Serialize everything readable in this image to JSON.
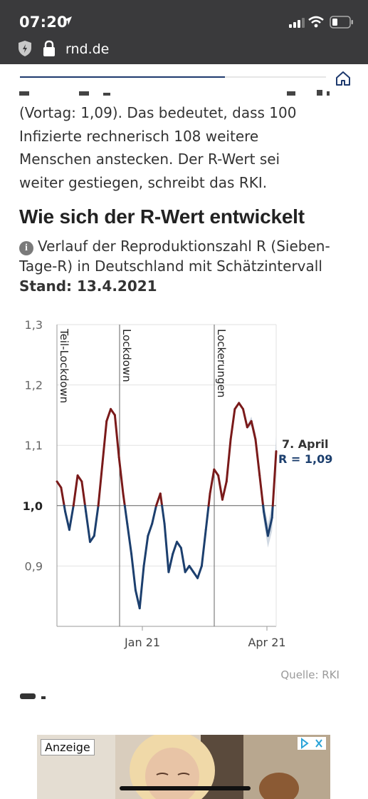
{
  "status_bar": {
    "time": "07:20"
  },
  "browser": {
    "domain": "rnd.de"
  },
  "reading_progress": 0.67,
  "article": {
    "paragraph_lines": [
      "(Vortag: 1,09). Das bedeutet, dass 100",
      "Infizierte rechnerisch 108 weitere",
      "Menschen anstecken. Der R-Wert sei",
      "weiter gestiegen, schreibt das RKI."
    ]
  },
  "section": {
    "heading": "Wie sich der R-Wert entwickelt",
    "description": "Verlauf der Reproduktionszahl R (Sieben-Tage-R) in Deutschland mit Schätzintervall",
    "stand": "Stand: 13.4.2021"
  },
  "chart_data": {
    "type": "line",
    "y_ticks": [
      "1,3",
      "1,2",
      "1,1",
      "1,0",
      "0,9"
    ],
    "ylim": [
      0.8,
      1.3
    ],
    "x_ticks": [
      "Jan 21",
      "Apr 21"
    ],
    "events": [
      "Teil-Lockdown",
      "Lockdown",
      "Lockerungen"
    ],
    "reference_line": 1.0,
    "colors": {
      "above": "#7a1a1a",
      "below": "#1c3f6e",
      "band": "#bcc8d6"
    },
    "series": [
      {
        "values": [
          1.04,
          1.03,
          0.99,
          0.96,
          1.0,
          1.05,
          1.04,
          0.99,
          0.94,
          0.95,
          1.0,
          1.07,
          1.14,
          1.16,
          1.15,
          1.08,
          1.02,
          0.97,
          0.92,
          0.86,
          0.83,
          0.9,
          0.95,
          0.97,
          1.0,
          1.02,
          0.97,
          0.89,
          0.92,
          0.94,
          0.93,
          0.89,
          0.9,
          0.89,
          0.88,
          0.9,
          0.96,
          1.02,
          1.06,
          1.05,
          1.01,
          1.04,
          1.11,
          1.16,
          1.17,
          1.16,
          1.13,
          1.14,
          1.11,
          1.05,
          0.99,
          0.95,
          0.98,
          1.09
        ]
      }
    ],
    "annotation": {
      "date": "7. April",
      "value": "R = 1,09"
    }
  },
  "source": "Quelle: RKI",
  "ad": {
    "label": "Anzeige"
  }
}
